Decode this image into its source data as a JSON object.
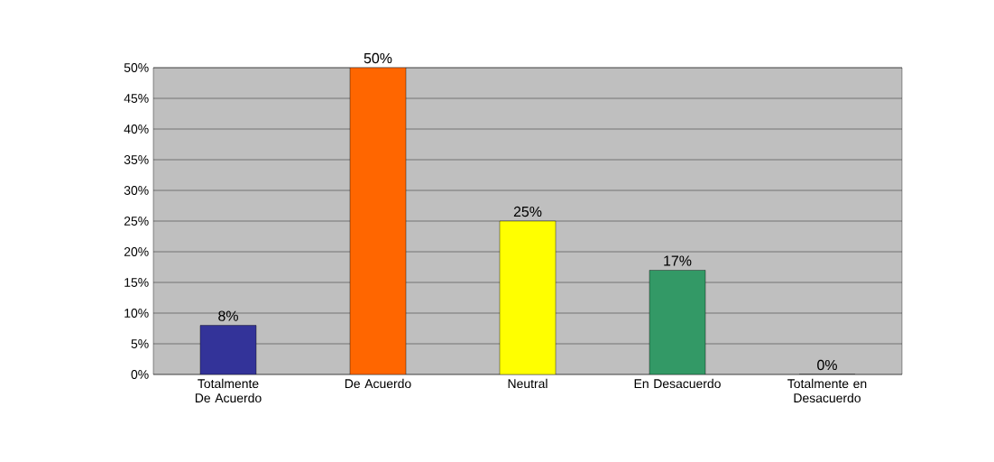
{
  "chart_data": {
    "type": "bar",
    "categories": [
      "Totalmente De Acuerdo",
      "De Acuerdo",
      "Neutral",
      "En Desacuerdo",
      "Totalmente en Desacuerdo"
    ],
    "values": [
      8,
      50,
      25,
      17,
      0
    ],
    "colors": [
      "#333399",
      "#ff6600",
      "#ffff00",
      "#339966",
      "#9966cc"
    ],
    "value_labels": [
      "8%",
      "50%",
      "25%",
      "17%",
      "0%"
    ],
    "ylim": [
      0,
      50
    ],
    "yticks": [
      {
        "value": 0,
        "label": "0%"
      },
      {
        "value": 5,
        "label": "5%"
      },
      {
        "value": 10,
        "label": "10%"
      },
      {
        "value": 15,
        "label": "15%"
      },
      {
        "value": 20,
        "label": "20%"
      },
      {
        "value": 25,
        "label": "25%"
      },
      {
        "value": 30,
        "label": "30%"
      },
      {
        "value": 35,
        "label": "35%"
      },
      {
        "value": 40,
        "label": "40%"
      },
      {
        "value": 45,
        "label": "45%"
      },
      {
        "value": 50,
        "label": "50%"
      }
    ],
    "grid": "y"
  }
}
